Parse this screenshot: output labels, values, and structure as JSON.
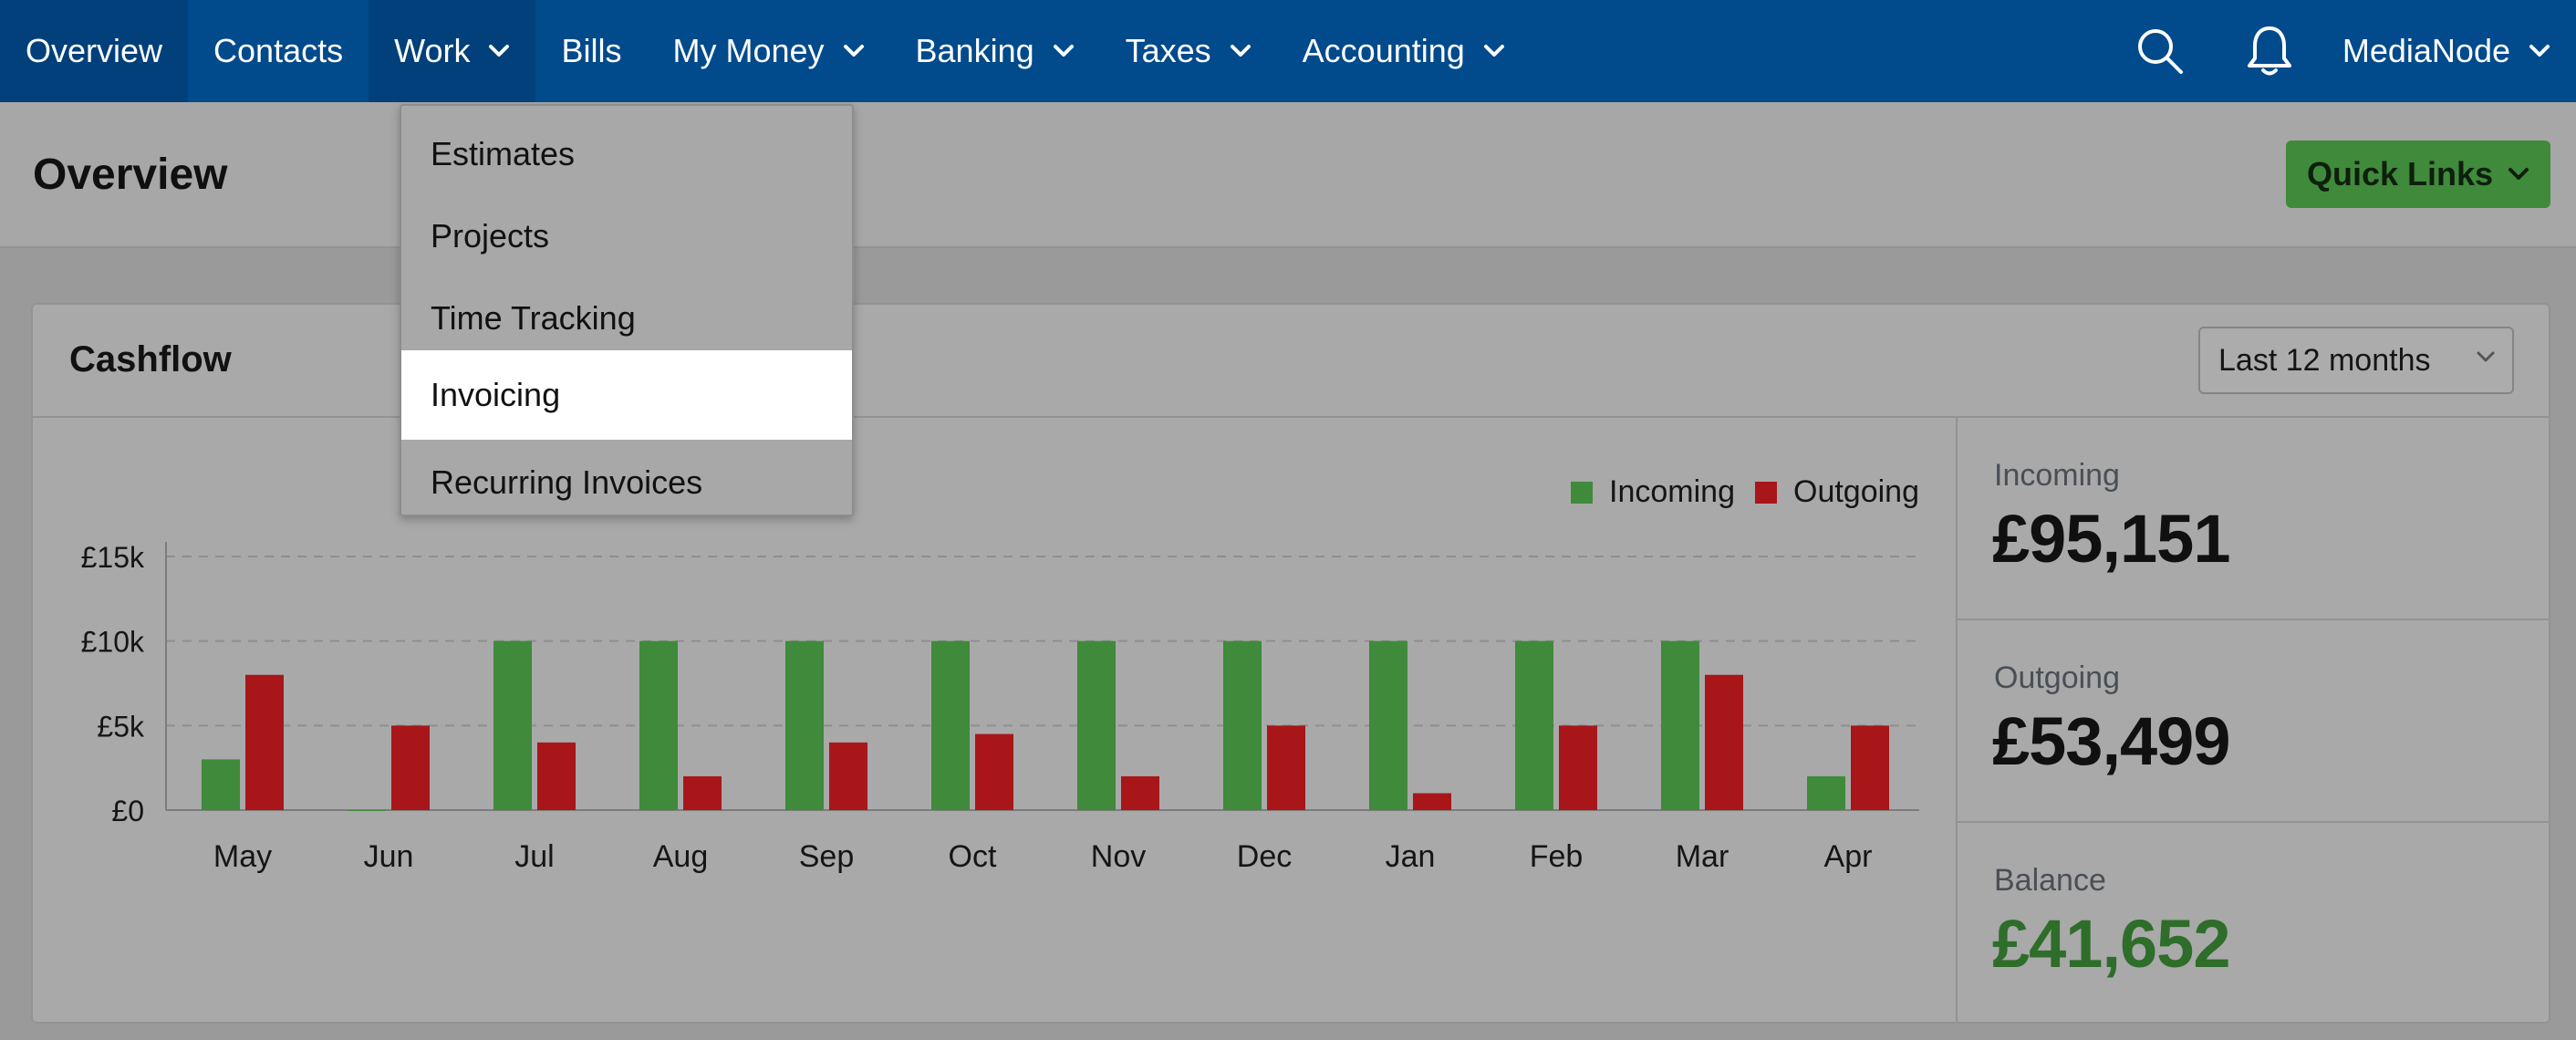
{
  "nav": {
    "items": [
      {
        "label": "Overview",
        "chevron": false
      },
      {
        "label": "Contacts",
        "chevron": false
      },
      {
        "label": "Work",
        "chevron": true
      },
      {
        "label": "Bills",
        "chevron": false
      },
      {
        "label": "My Money",
        "chevron": true
      },
      {
        "label": "Banking",
        "chevron": true
      },
      {
        "label": "Taxes",
        "chevron": true
      },
      {
        "label": "Accounting",
        "chevron": true
      }
    ],
    "search_icon": "search-icon",
    "bell_icon": "bell-icon",
    "user_label": "MediaNode"
  },
  "header": {
    "title": "Overview",
    "quick_links": "Quick Links"
  },
  "dropdown": {
    "items": [
      "Estimates",
      "Projects",
      "Time Tracking",
      "Invoicing",
      "Recurring Invoices"
    ],
    "highlighted": "Invoicing"
  },
  "card": {
    "title": "Cashflow",
    "range": "Last 12 months"
  },
  "stats": {
    "incoming_label": "Incoming",
    "incoming_value": "£95,151",
    "outgoing_label": "Outgoing",
    "outgoing_value": "£53,499",
    "balance_label": "Balance",
    "balance_value": "£41,652"
  },
  "colors": {
    "nav_bg": "#014a8c",
    "incoming": "#3f8a3b",
    "outgoing": "#a8161a",
    "balance": "#2e6d2a"
  },
  "chart_data": {
    "type": "bar",
    "categories": [
      "May",
      "Jun",
      "Jul",
      "Aug",
      "Sep",
      "Oct",
      "Nov",
      "Dec",
      "Jan",
      "Feb",
      "Mar",
      "Apr"
    ],
    "series": [
      {
        "name": "Incoming",
        "values": [
          3000,
          0,
          10000,
          10000,
          10000,
          10000,
          10000,
          10000,
          10000,
          10000,
          10000,
          2000
        ]
      },
      {
        "name": "Outgoing",
        "values": [
          8000,
          5000,
          4000,
          2000,
          4000,
          4500,
          2000,
          5000,
          1000,
          5000,
          8000,
          5000
        ]
      }
    ],
    "yticks": [
      {
        "value": 0,
        "label": "£0"
      },
      {
        "value": 5000,
        "label": "£5k"
      },
      {
        "value": 10000,
        "label": "£10k"
      },
      {
        "value": 15000,
        "label": "£15k"
      }
    ],
    "ylim": [
      0,
      15000
    ],
    "legend": [
      "Incoming",
      "Outgoing"
    ],
    "grid": true
  }
}
